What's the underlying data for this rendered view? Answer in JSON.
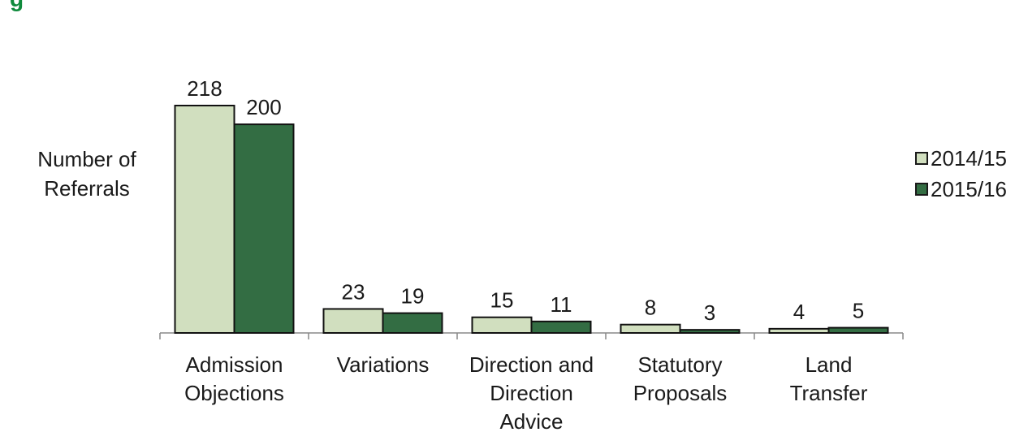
{
  "page": {
    "title": "g"
  },
  "chart_data": {
    "type": "bar",
    "ylabel_lines": [
      "Number of",
      "Referrals"
    ],
    "categories": [
      [
        "Admission",
        "Objections"
      ],
      [
        "Variations"
      ],
      [
        "Direction and",
        "Direction",
        "Advice"
      ],
      [
        "Statutory",
        "Proposals"
      ],
      [
        "Land",
        "Transfer"
      ]
    ],
    "series": [
      {
        "name": "2014/15",
        "values": [
          218,
          23,
          15,
          8,
          4
        ],
        "color": "#d1dfbf"
      },
      {
        "name": "2015/16",
        "values": [
          200,
          19,
          11,
          3,
          5
        ],
        "color": "#336d43"
      }
    ],
    "ylim": [
      0,
      218
    ],
    "grid": false,
    "legend": "right",
    "data_labels": true
  }
}
